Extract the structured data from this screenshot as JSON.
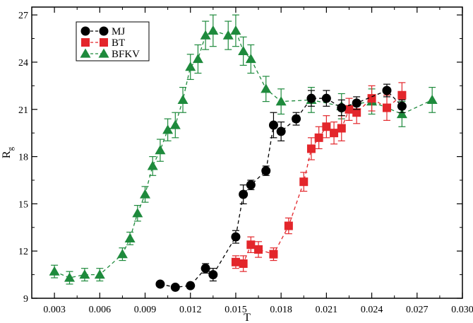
{
  "chart_data": {
    "type": "scatter",
    "xlabel": "T",
    "ylabel": "R",
    "ylabel_subscript": "g",
    "xlim": [
      0.0015,
      0.03
    ],
    "ylim": [
      9,
      27.5
    ],
    "x_ticks": [
      0.003,
      0.006,
      0.009,
      0.012,
      0.015,
      0.018,
      0.021,
      0.024,
      0.027,
      0.03
    ],
    "x_tick_labels": [
      "0.003",
      "0.006",
      "0.009",
      "0.012",
      "0.015",
      "0.018",
      "0.021",
      "0.024",
      "0.027",
      "0.030"
    ],
    "y_ticks": [
      9,
      12,
      15,
      18,
      21,
      24,
      27
    ],
    "y_tick_labels": [
      "9",
      "12",
      "15",
      "18",
      "21",
      "24",
      "27"
    ],
    "legend_position": "top-left",
    "series": [
      {
        "name": "MJ",
        "marker": "circle",
        "color": "#000000",
        "points": [
          {
            "x": 0.01,
            "y": 9.9,
            "err": 0.0
          },
          {
            "x": 0.011,
            "y": 9.7,
            "err": 0.0
          },
          {
            "x": 0.012,
            "y": 9.8,
            "err": 0.0
          },
          {
            "x": 0.013,
            "y": 10.9,
            "err": 0.3
          },
          {
            "x": 0.0135,
            "y": 10.5,
            "err": 0.4
          },
          {
            "x": 0.015,
            "y": 12.9,
            "err": 0.4
          },
          {
            "x": 0.0155,
            "y": 15.6,
            "err": 0.6
          },
          {
            "x": 0.016,
            "y": 16.2,
            "err": 0.3
          },
          {
            "x": 0.017,
            "y": 17.1,
            "err": 0.3
          },
          {
            "x": 0.0175,
            "y": 20.0,
            "err": 0.8
          },
          {
            "x": 0.018,
            "y": 19.6,
            "err": 0.6
          },
          {
            "x": 0.019,
            "y": 20.4,
            "err": 0.4
          },
          {
            "x": 0.02,
            "y": 21.7,
            "err": 0.5
          },
          {
            "x": 0.021,
            "y": 21.7,
            "err": 0.5
          },
          {
            "x": 0.022,
            "y": 21.1,
            "err": 0.5
          },
          {
            "x": 0.023,
            "y": 21.4,
            "err": 0.4
          },
          {
            "x": 0.025,
            "y": 22.2,
            "err": 0.4
          },
          {
            "x": 0.026,
            "y": 21.2,
            "err": 0.4
          }
        ]
      },
      {
        "name": "BT",
        "marker": "square",
        "color": "#e3262b",
        "points": [
          {
            "x": 0.015,
            "y": 11.3,
            "err": 0.4
          },
          {
            "x": 0.0155,
            "y": 11.2,
            "err": 0.5
          },
          {
            "x": 0.016,
            "y": 12.4,
            "err": 0.5
          },
          {
            "x": 0.0165,
            "y": 12.1,
            "err": 0.5
          },
          {
            "x": 0.0175,
            "y": 11.8,
            "err": 0.4
          },
          {
            "x": 0.0185,
            "y": 13.6,
            "err": 0.5
          },
          {
            "x": 0.0195,
            "y": 16.4,
            "err": 0.6
          },
          {
            "x": 0.02,
            "y": 18.5,
            "err": 0.7
          },
          {
            "x": 0.0205,
            "y": 19.2,
            "err": 0.7
          },
          {
            "x": 0.021,
            "y": 19.9,
            "err": 0.7
          },
          {
            "x": 0.0215,
            "y": 19.5,
            "err": 0.7
          },
          {
            "x": 0.022,
            "y": 19.8,
            "err": 0.8
          },
          {
            "x": 0.0225,
            "y": 21.0,
            "err": 0.7
          },
          {
            "x": 0.023,
            "y": 20.8,
            "err": 0.7
          },
          {
            "x": 0.024,
            "y": 21.7,
            "err": 0.8
          },
          {
            "x": 0.025,
            "y": 21.1,
            "err": 0.8
          },
          {
            "x": 0.026,
            "y": 21.9,
            "err": 0.8
          }
        ]
      },
      {
        "name": "BFKV",
        "marker": "triangle",
        "color": "#1e8a3c",
        "points": [
          {
            "x": 0.003,
            "y": 10.7,
            "err": 0.4
          },
          {
            "x": 0.004,
            "y": 10.3,
            "err": 0.4
          },
          {
            "x": 0.005,
            "y": 10.5,
            "err": 0.4
          },
          {
            "x": 0.006,
            "y": 10.5,
            "err": 0.4
          },
          {
            "x": 0.0075,
            "y": 11.8,
            "err": 0.4
          },
          {
            "x": 0.008,
            "y": 12.8,
            "err": 0.4
          },
          {
            "x": 0.0085,
            "y": 14.4,
            "err": 0.5
          },
          {
            "x": 0.009,
            "y": 15.6,
            "err": 0.5
          },
          {
            "x": 0.0095,
            "y": 17.4,
            "err": 0.6
          },
          {
            "x": 0.01,
            "y": 18.4,
            "err": 0.7
          },
          {
            "x": 0.0105,
            "y": 19.7,
            "err": 0.7
          },
          {
            "x": 0.011,
            "y": 20.0,
            "err": 0.8
          },
          {
            "x": 0.0115,
            "y": 21.6,
            "err": 0.8
          },
          {
            "x": 0.012,
            "y": 23.7,
            "err": 0.8
          },
          {
            "x": 0.0125,
            "y": 24.2,
            "err": 0.9
          },
          {
            "x": 0.013,
            "y": 25.7,
            "err": 0.9
          },
          {
            "x": 0.0135,
            "y": 26.0,
            "err": 1.0
          },
          {
            "x": 0.0145,
            "y": 25.7,
            "err": 0.9
          },
          {
            "x": 0.015,
            "y": 26.0,
            "err": 1.0
          },
          {
            "x": 0.0155,
            "y": 24.7,
            "err": 0.9
          },
          {
            "x": 0.016,
            "y": 24.2,
            "err": 0.9
          },
          {
            "x": 0.017,
            "y": 22.3,
            "err": 0.8
          },
          {
            "x": 0.018,
            "y": 21.5,
            "err": 0.8
          },
          {
            "x": 0.02,
            "y": 21.6,
            "err": 0.8
          },
          {
            "x": 0.022,
            "y": 21.2,
            "err": 0.8
          },
          {
            "x": 0.024,
            "y": 21.5,
            "err": 0.8
          },
          {
            "x": 0.026,
            "y": 20.7,
            "err": 0.8
          },
          {
            "x": 0.028,
            "y": 21.6,
            "err": 0.8
          }
        ]
      }
    ]
  }
}
